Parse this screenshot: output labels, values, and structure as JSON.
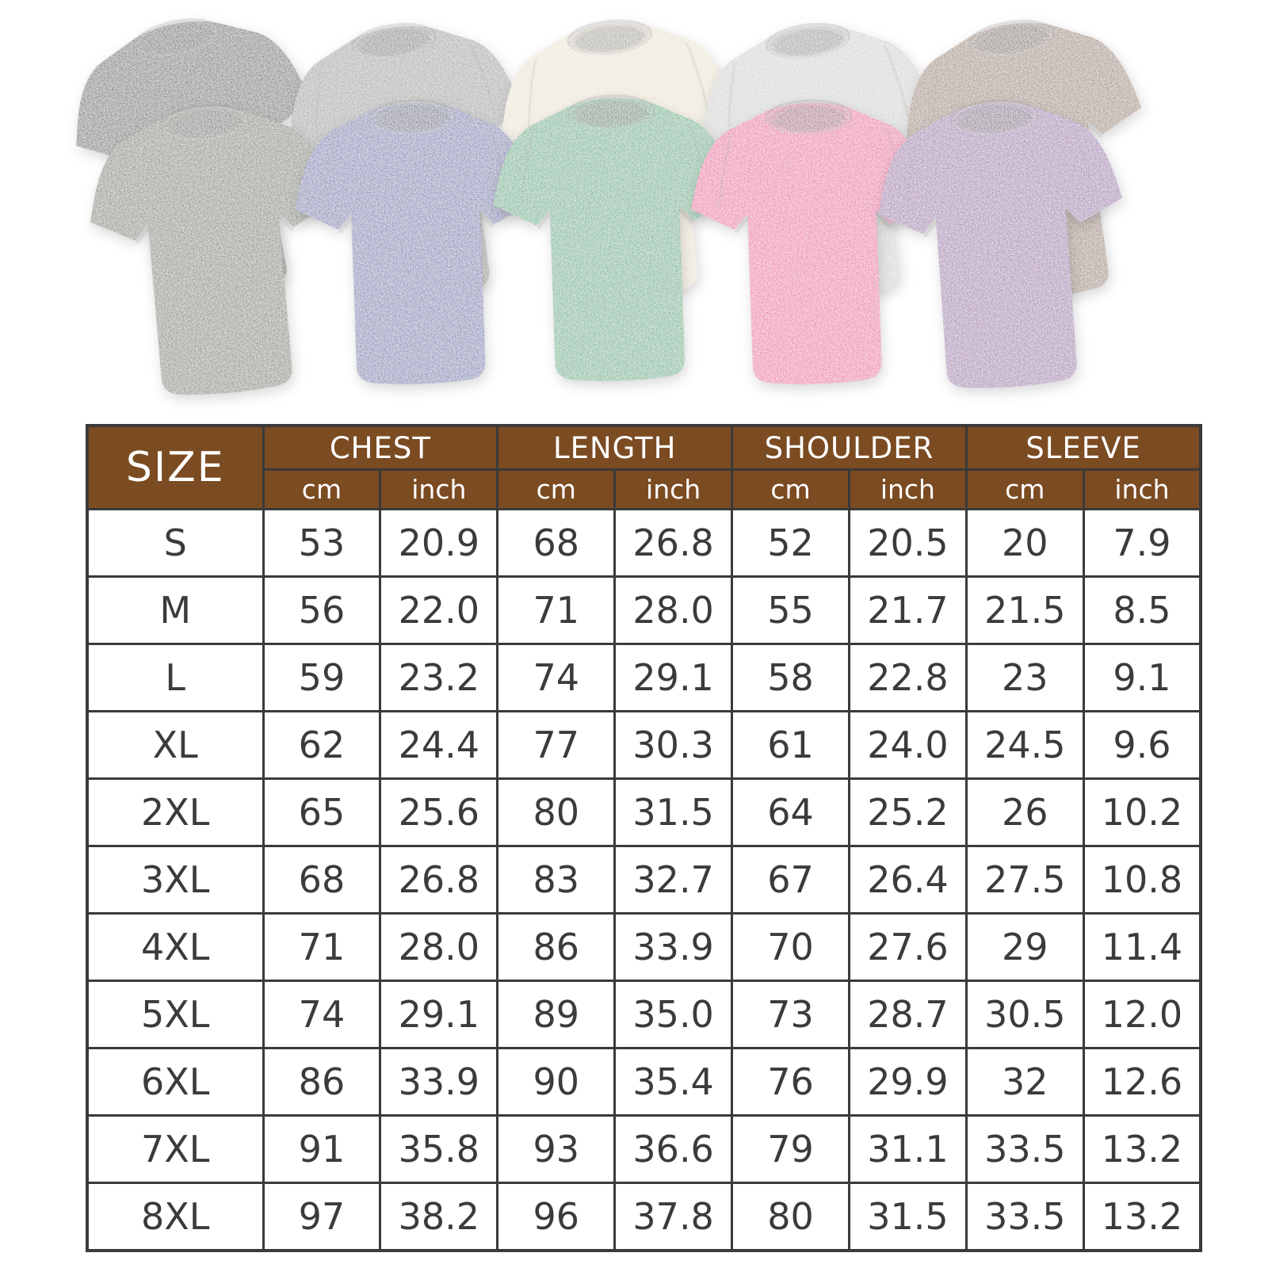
{
  "shirts": [
    {
      "name": "washed-black",
      "hex": "#343231"
    },
    {
      "name": "washed-gray",
      "hex": "#8f8f8f"
    },
    {
      "name": "washed-cream",
      "hex": "#e9e0cc"
    },
    {
      "name": "washed-light-gray",
      "hex": "#cbcbc8"
    },
    {
      "name": "washed-brown",
      "hex": "#8b6a4f"
    },
    {
      "name": "washed-army-green",
      "hex": "#5c6344"
    },
    {
      "name": "washed-blue",
      "hex": "#4d58a2"
    },
    {
      "name": "washed-green",
      "hex": "#1ca46e"
    },
    {
      "name": "washed-rose",
      "hex": "#e83a92"
    },
    {
      "name": "washed-purple",
      "hex": "#8d519f"
    }
  ],
  "size_chart": {
    "size_header": "SIZE",
    "groups": [
      {
        "label": "CHEST",
        "units": [
          "cm",
          "inch"
        ]
      },
      {
        "label": "LENGTH",
        "units": [
          "cm",
          "inch"
        ]
      },
      {
        "label": "SHOULDER",
        "units": [
          "cm",
          "inch"
        ]
      },
      {
        "label": "SLEEVE",
        "units": [
          "cm",
          "inch"
        ]
      }
    ],
    "rows": [
      {
        "size": "S",
        "values": [
          "53",
          "20.9",
          "68",
          "26.8",
          "52",
          "20.5",
          "20",
          "7.9"
        ]
      },
      {
        "size": "M",
        "values": [
          "56",
          "22.0",
          "71",
          "28.0",
          "55",
          "21.7",
          "21.5",
          "8.5"
        ]
      },
      {
        "size": "L",
        "values": [
          "59",
          "23.2",
          "74",
          "29.1",
          "58",
          "22.8",
          "23",
          "9.1"
        ]
      },
      {
        "size": "XL",
        "values": [
          "62",
          "24.4",
          "77",
          "30.3",
          "61",
          "24.0",
          "24.5",
          "9.6"
        ]
      },
      {
        "size": "2XL",
        "values": [
          "65",
          "25.6",
          "80",
          "31.5",
          "64",
          "25.2",
          "26",
          "10.2"
        ]
      },
      {
        "size": "3XL",
        "values": [
          "68",
          "26.8",
          "83",
          "32.7",
          "67",
          "26.4",
          "27.5",
          "10.8"
        ]
      },
      {
        "size": "4XL",
        "values": [
          "71",
          "28.0",
          "86",
          "33.9",
          "70",
          "27.6",
          "29",
          "11.4"
        ]
      },
      {
        "size": "5XL",
        "values": [
          "74",
          "29.1",
          "89",
          "35.0",
          "73",
          "28.7",
          "30.5",
          "12.0"
        ]
      },
      {
        "size": "6XL",
        "values": [
          "86",
          "33.9",
          "90",
          "35.4",
          "76",
          "29.9",
          "32",
          "12.6"
        ]
      },
      {
        "size": "7XL",
        "values": [
          "91",
          "35.8",
          "93",
          "36.6",
          "79",
          "31.1",
          "33.5",
          "13.2"
        ]
      },
      {
        "size": "8XL",
        "values": [
          "97",
          "38.2",
          "96",
          "37.8",
          "80",
          "31.5",
          "33.5",
          "13.2"
        ]
      }
    ]
  },
  "colors": {
    "header_bg": "#7b4b22",
    "header_text": "#ffffff",
    "table_border": "#3a3a3a",
    "cell_text": "#3b3b3b",
    "page_bg": "#ffffff"
  }
}
